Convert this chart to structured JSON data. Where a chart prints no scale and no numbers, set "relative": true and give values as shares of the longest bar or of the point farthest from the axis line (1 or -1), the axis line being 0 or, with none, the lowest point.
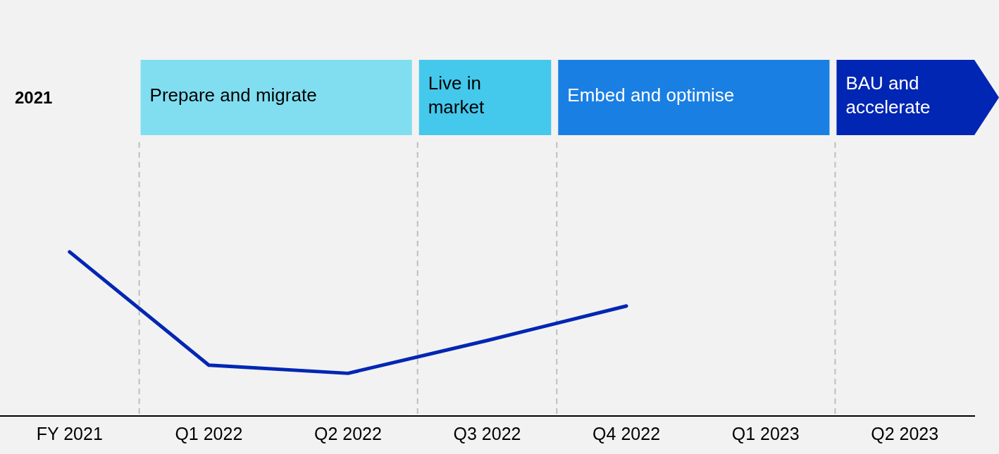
{
  "chart_data": {
    "type": "line",
    "relative": true,
    "categories": [
      "FY 2021",
      "Q1 2022",
      "Q2 2022",
      "Q3 2022",
      "Q4 2022",
      "Q1 2023",
      "Q2 2023"
    ],
    "series": [
      {
        "color": "#0026b3",
        "values": [
          1,
          0.31,
          0.26,
          0.46,
          0.67,
          null,
          null
        ]
      }
    ],
    "annotations": [
      "2021",
      "Prepare and migrate",
      "Live in market",
      "Embed and optimise",
      "BAU and accelerate"
    ],
    "marker": "none",
    "line_style": "solid",
    "grid": false,
    "legend": false
  }
}
